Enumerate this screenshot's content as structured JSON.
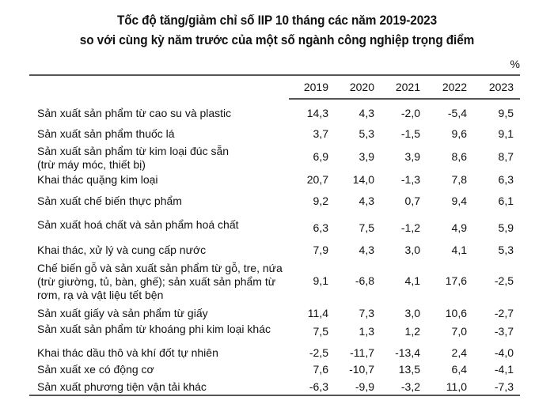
{
  "title": {
    "line1": "Tốc độ tăng/giảm chỉ số IIP 10 tháng các năm 2019-2023",
    "line2": "so với cùng kỳ năm trước của một số ngành công nghiệp trọng điểm"
  },
  "unit": "%",
  "table": {
    "columns": [
      "2019",
      "2020",
      "2021",
      "2022",
      "2023"
    ],
    "rows": [
      {
        "label": [
          "Sản xuất sản phẩm từ cao su và plastic"
        ],
        "values": [
          "14,3",
          "4,3",
          "-2,0",
          "-5,4",
          "9,5"
        ]
      },
      {
        "label": [
          "Sản xuất sản phẩm thuốc lá"
        ],
        "values": [
          "3,7",
          "5,3",
          "-1,5",
          "9,6",
          "9,1"
        ]
      },
      {
        "label": [
          "Sản xuất sản phẩm từ kim loại đúc sẵn",
          "(trừ máy móc, thiết bị)"
        ],
        "values": [
          "6,9",
          "3,9",
          "3,9",
          "8,6",
          "8,7"
        ]
      },
      {
        "label": [
          "Khai thác quặng kim loại"
        ],
        "values": [
          "20,7",
          "14,0",
          "-1,3",
          "7,8",
          "6,3"
        ]
      },
      {
        "label": [
          "Sản xuất chế biến thực phẩm"
        ],
        "values": [
          "9,2",
          "4,3",
          "0,7",
          "9,4",
          "6,1"
        ]
      },
      {
        "label": [
          "Sản xuất hoá chất và sản phẩm hoá chất"
        ],
        "values": [
          "6,3",
          "7,5",
          "-1,2",
          "4,9",
          "5,9"
        ]
      },
      {
        "label": [
          "Khai thác, xử lý và cung cấp nước"
        ],
        "values": [
          "7,9",
          "4,3",
          "3,0",
          "4,1",
          "5,3"
        ]
      },
      {
        "label": [
          "Chế biến gỗ và sản xuất sản phẩm từ gỗ, tre, nứa",
          "(trừ giường, tủ, bàn, ghế); sản xuất sản phẩm từ",
          "rơm, rạ và vật liệu tết bện"
        ],
        "values": [
          "9,1",
          "-6,8",
          "4,1",
          "17,6",
          "-2,5"
        ]
      },
      {
        "label": [
          "Sản xuất giấy và sản phẩm từ giấy"
        ],
        "values": [
          "11,4",
          "7,3",
          "3,0",
          "10,6",
          "-2,7"
        ]
      },
      {
        "label": [
          "Sản xuất sản phẩm từ khoáng phi kim loại khác"
        ],
        "values": [
          "7,5",
          "1,3",
          "1,2",
          "7,0",
          "-3,7"
        ]
      },
      {
        "label": [
          "Khai thác dầu thô và khí đốt tự nhiên"
        ],
        "values": [
          "-2,5",
          "-11,7",
          "-13,4",
          "2,4",
          "-4,0"
        ]
      },
      {
        "label": [
          "Sản xuất xe có động cơ"
        ],
        "values": [
          "7,6",
          "-10,7",
          "13,5",
          "6,4",
          "-4,1"
        ]
      },
      {
        "label": [
          "Sản xuất phương tiện vận tải khác"
        ],
        "values": [
          "-6,3",
          "-9,9",
          "-3,2",
          "11,0",
          "-7,3"
        ]
      }
    ]
  }
}
